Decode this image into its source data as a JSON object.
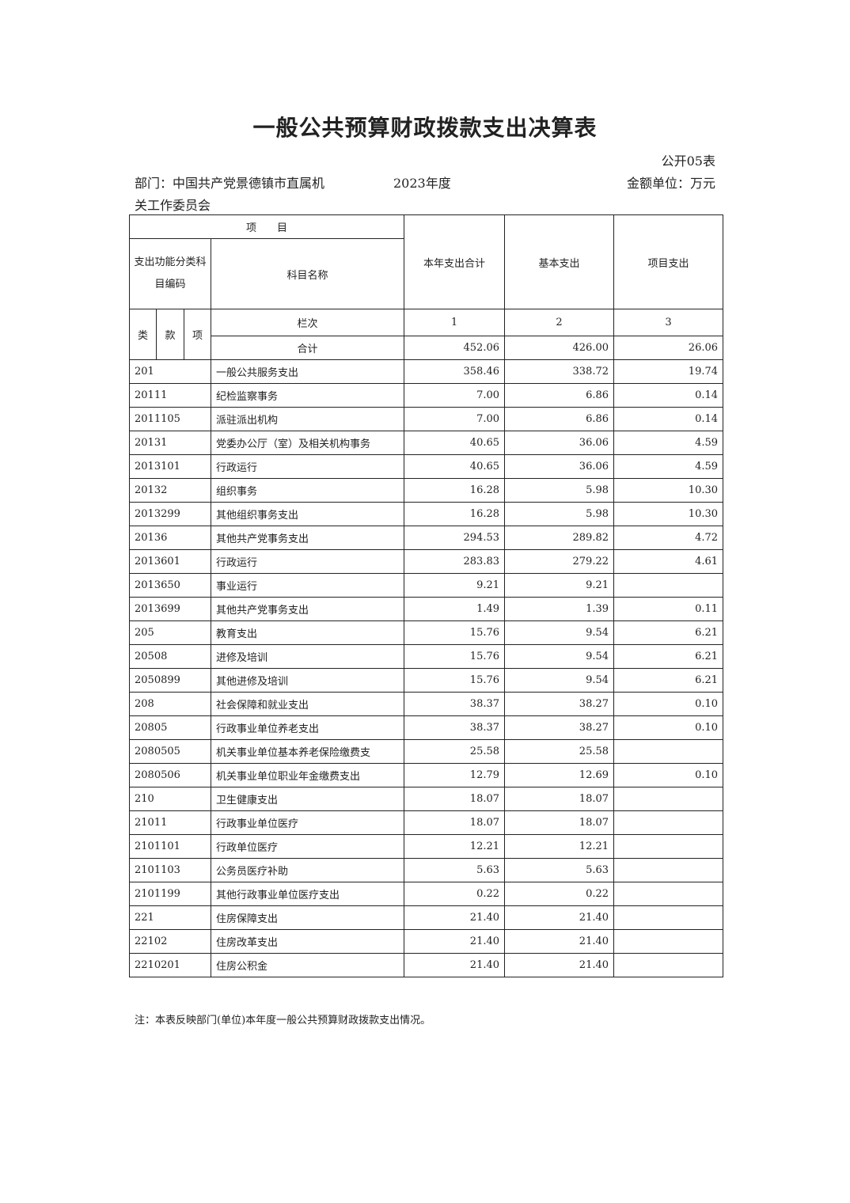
{
  "title": "一般公共预算财政拨款支出决算表",
  "table_no": "公开05表",
  "department": "部门：中国共产党景德镇市直属机",
  "department_cont": "关工作委员会",
  "year": "2023年度",
  "unit": "金额单位：万元",
  "headers": {
    "item": "项　　目",
    "code": "支出功能分类科目编码",
    "name": "科目名称",
    "total": "本年支出合计",
    "basic": "基本支出",
    "project": "项目支出",
    "lei": "类",
    "kuan": "款",
    "xiang": "项",
    "col_label": "栏次",
    "col1": "1",
    "col2": "2",
    "col3": "3",
    "sum_label": "合计",
    "sum_total": "452.06",
    "sum_basic": "426.00",
    "sum_project": "26.06"
  },
  "rows": [
    {
      "code": "201",
      "name": "一般公共服务支出",
      "total": "358.46",
      "basic": "338.72",
      "project": "19.74"
    },
    {
      "code": "20111",
      "name": "纪检监察事务",
      "total": "7.00",
      "basic": "6.86",
      "project": "0.14"
    },
    {
      "code": "2011105",
      "name": "派驻派出机构",
      "total": "7.00",
      "basic": "6.86",
      "project": "0.14"
    },
    {
      "code": "20131",
      "name": "党委办公厅（室）及相关机构事务",
      "total": "40.65",
      "basic": "36.06",
      "project": "4.59"
    },
    {
      "code": "2013101",
      "name": "行政运行",
      "total": "40.65",
      "basic": "36.06",
      "project": "4.59"
    },
    {
      "code": "20132",
      "name": "组织事务",
      "total": "16.28",
      "basic": "5.98",
      "project": "10.30"
    },
    {
      "code": "2013299",
      "name": "其他组织事务支出",
      "total": "16.28",
      "basic": "5.98",
      "project": "10.30"
    },
    {
      "code": "20136",
      "name": "其他共产党事务支出",
      "total": "294.53",
      "basic": "289.82",
      "project": "4.72"
    },
    {
      "code": "2013601",
      "name": "行政运行",
      "total": "283.83",
      "basic": "279.22",
      "project": "4.61"
    },
    {
      "code": "2013650",
      "name": "事业运行",
      "total": "9.21",
      "basic": "9.21",
      "project": ""
    },
    {
      "code": "2013699",
      "name": "其他共产党事务支出",
      "total": "1.49",
      "basic": "1.39",
      "project": "0.11"
    },
    {
      "code": "205",
      "name": "教育支出",
      "total": "15.76",
      "basic": "9.54",
      "project": "6.21"
    },
    {
      "code": "20508",
      "name": "进修及培训",
      "total": "15.76",
      "basic": "9.54",
      "project": "6.21"
    },
    {
      "code": "2050899",
      "name": "其他进修及培训",
      "total": "15.76",
      "basic": "9.54",
      "project": "6.21"
    },
    {
      "code": "208",
      "name": "社会保障和就业支出",
      "total": "38.37",
      "basic": "38.27",
      "project": "0.10"
    },
    {
      "code": "20805",
      "name": "行政事业单位养老支出",
      "total": "38.37",
      "basic": "38.27",
      "project": "0.10"
    },
    {
      "code": "2080505",
      "name": "机关事业单位基本养老保险缴费支",
      "total": "25.58",
      "basic": "25.58",
      "project": ""
    },
    {
      "code": "2080506",
      "name": "机关事业单位职业年金缴费支出",
      "total": "12.79",
      "basic": "12.69",
      "project": "0.10"
    },
    {
      "code": "210",
      "name": "卫生健康支出",
      "total": "18.07",
      "basic": "18.07",
      "project": ""
    },
    {
      "code": "21011",
      "name": "行政事业单位医疗",
      "total": "18.07",
      "basic": "18.07",
      "project": ""
    },
    {
      "code": "2101101",
      "name": "行政单位医疗",
      "total": "12.21",
      "basic": "12.21",
      "project": ""
    },
    {
      "code": "2101103",
      "name": "公务员医疗补助",
      "total": "5.63",
      "basic": "5.63",
      "project": ""
    },
    {
      "code": "2101199",
      "name": "其他行政事业单位医疗支出",
      "total": "0.22",
      "basic": "0.22",
      "project": ""
    },
    {
      "code": "221",
      "name": "住房保障支出",
      "total": "21.40",
      "basic": "21.40",
      "project": ""
    },
    {
      "code": "22102",
      "name": "住房改革支出",
      "total": "21.40",
      "basic": "21.40",
      "project": ""
    },
    {
      "code": "2210201",
      "name": "住房公积金",
      "total": "21.40",
      "basic": "21.40",
      "project": ""
    }
  ],
  "note": "注：本表反映部门(单位)本年度一般公共预算财政拨款支出情况。"
}
